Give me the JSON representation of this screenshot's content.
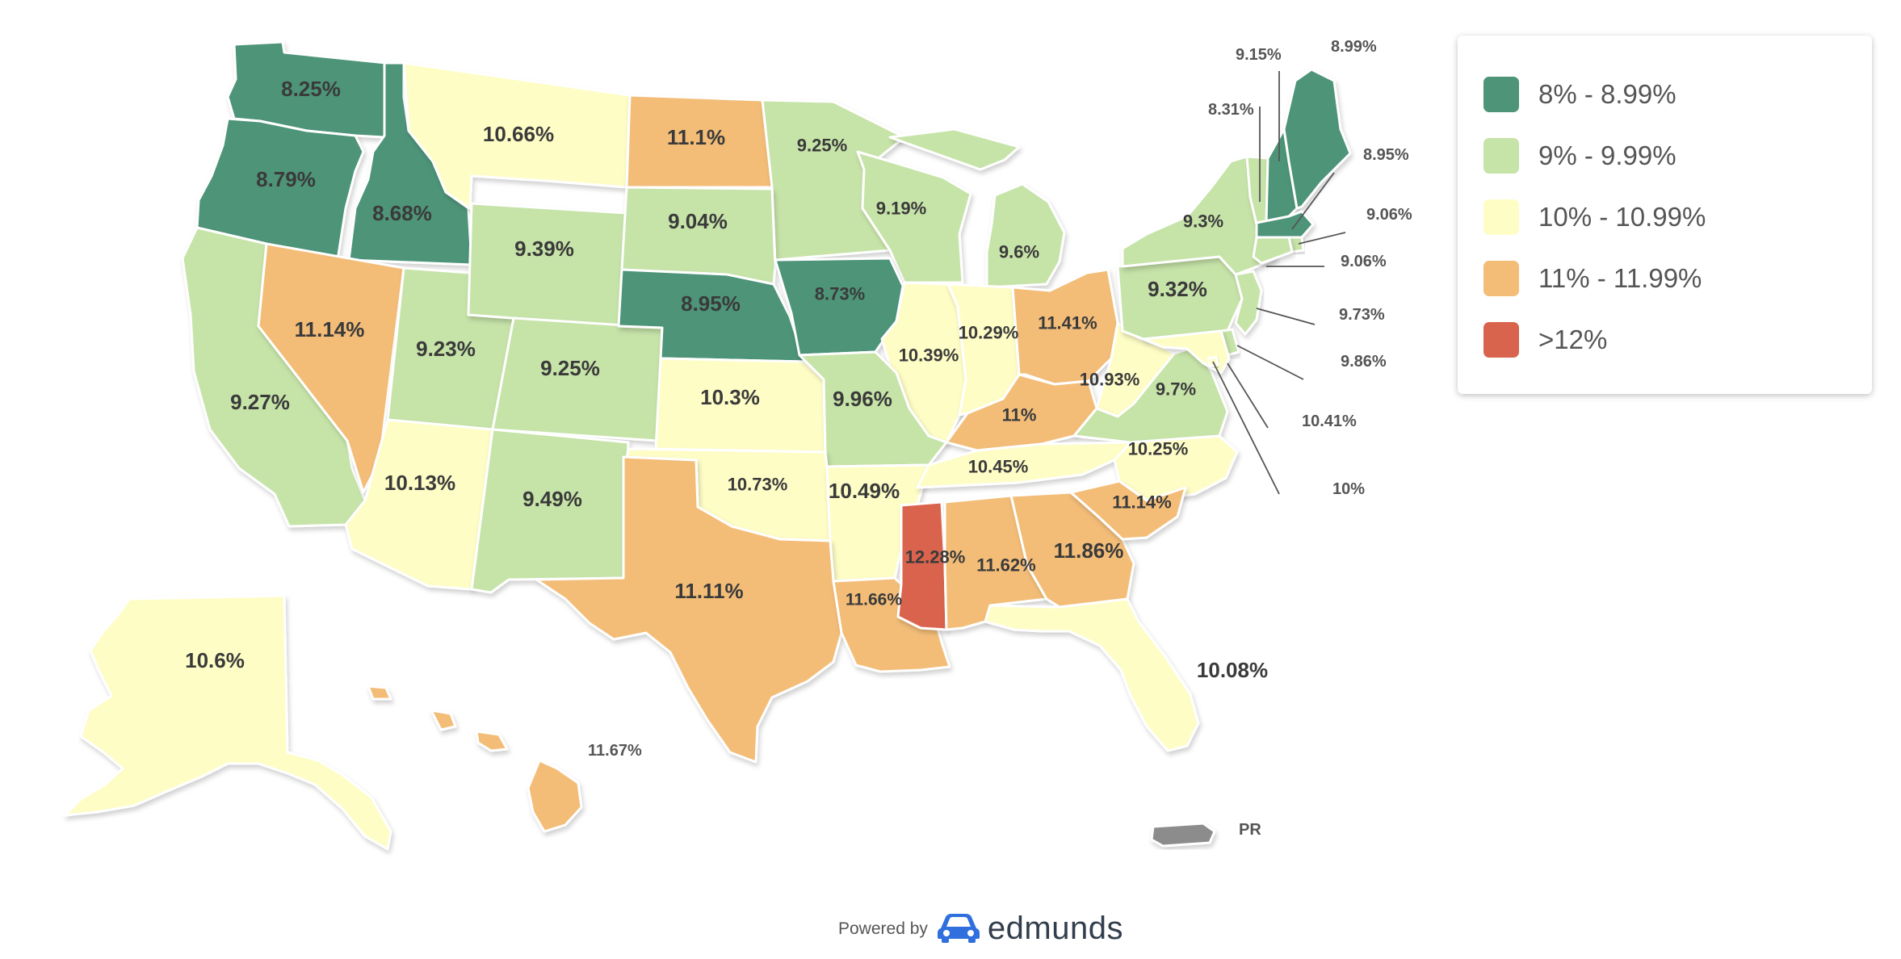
{
  "legend": {
    "items": [
      {
        "label": "8% - 8.99%",
        "color": "#4e9479"
      },
      {
        "label": "9% - 9.99%",
        "color": "#c6e3a8"
      },
      {
        "label": "10% - 10.99%",
        "color": "#fefdc6"
      },
      {
        "label": "11% - 11.99%",
        "color": "#f3bd78"
      },
      {
        "label": ">12%",
        "color": "#d9644e"
      }
    ]
  },
  "states": {
    "WA": "8.25%",
    "OR": "8.79%",
    "ID": "8.68%",
    "MT": "10.66%",
    "ND": "11.1%",
    "MN": "9.25%",
    "WI": "9.19%",
    "MI": "9.6%",
    "CA": "9.27%",
    "NV": "11.14%",
    "UT": "9.23%",
    "WY": "9.39%",
    "SD": "9.04%",
    "CO": "9.25%",
    "NE": "8.95%",
    "IA": "8.73%",
    "IL": "10.39%",
    "IN": "10.29%",
    "OH": "11.41%",
    "KY": "11%",
    "WV": "10.93%",
    "VA": "9.7%",
    "PA": "9.32%",
    "NY": "9.3%",
    "AZ": "10.13%",
    "NM": "9.49%",
    "KS": "10.3%",
    "MO": "9.96%",
    "OK": "10.73%",
    "AR": "10.49%",
    "TN": "10.45%",
    "NC": "10.25%",
    "TX": "11.11%",
    "LA": "11.66%",
    "MS": "12.28%",
    "AL": "11.62%",
    "GA": "11.86%",
    "SC": "11.14%",
    "FL": "10.08%",
    "AK": "10.6%",
    "HI": "11.67%",
    "VT": "9.15%",
    "NH": "8.31%",
    "ME": "8.99%",
    "MA": "8.95%",
    "RI": "9.06%",
    "CT": "9.06%",
    "NJ": "9.73%",
    "DE": "9.86%",
    "MD": "10.41%",
    "DC": "10%"
  },
  "territory": {
    "label": "PR",
    "color": "#8c8c8c"
  },
  "footer": {
    "powered_by": "Powered by",
    "brand": "edmunds",
    "brand_color": "#2f6fde"
  }
}
